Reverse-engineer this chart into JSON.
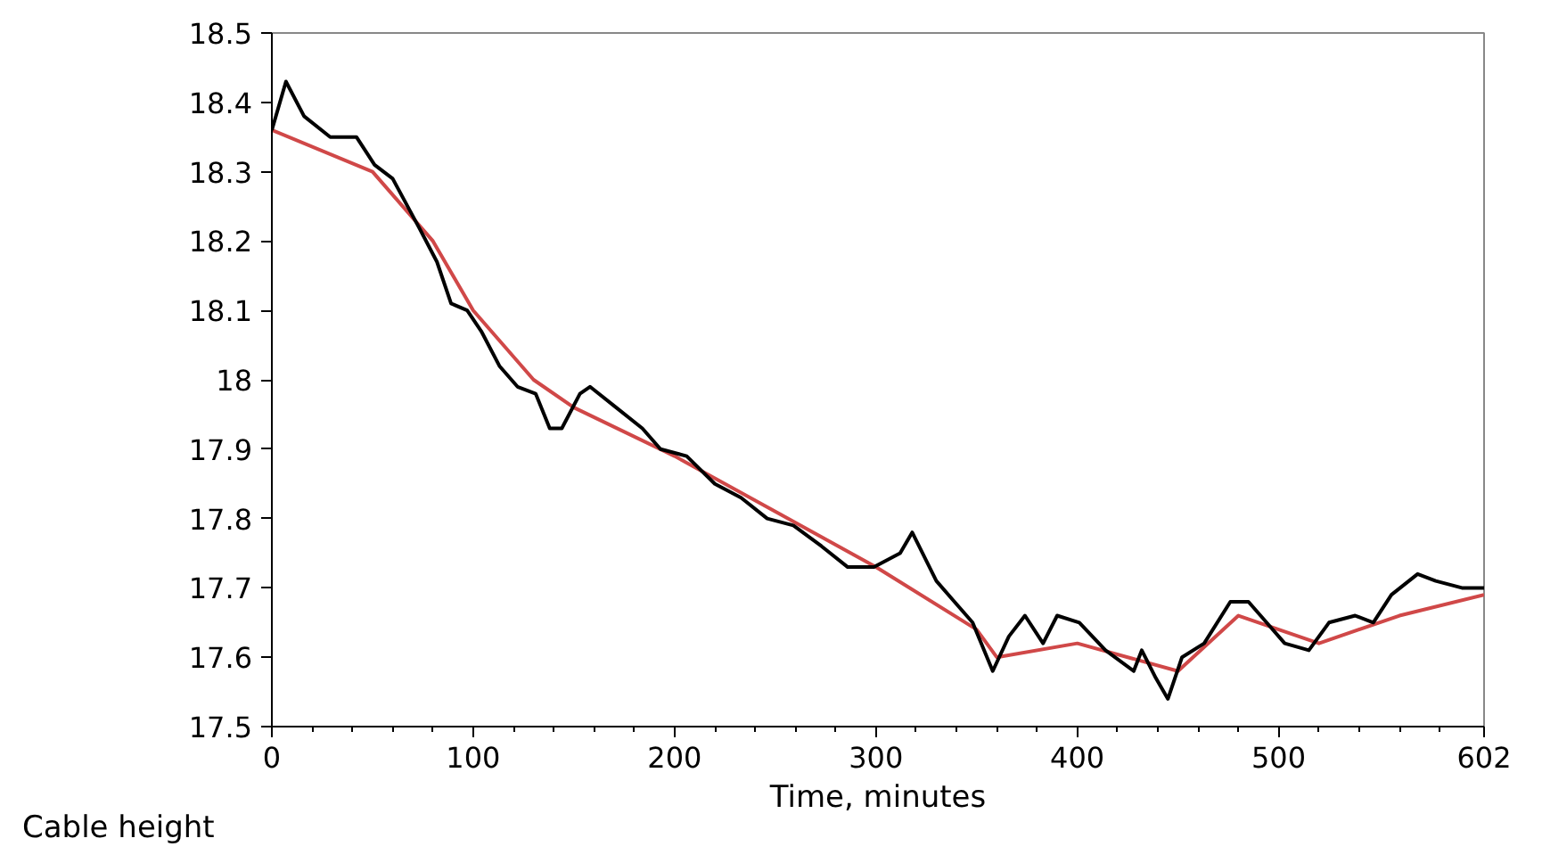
{
  "chart_data": {
    "type": "line",
    "xlabel": "Time, minutes",
    "annotations": [
      "Cable height"
    ],
    "xlim": [
      0,
      602
    ],
    "ylim": [
      17.5,
      18.5
    ],
    "xticks": [
      0,
      {
        "value": 20,
        "label": null
      },
      {
        "value": 40,
        "label": null
      },
      {
        "value": 60,
        "label": null
      },
      {
        "value": 80,
        "label": null
      },
      100,
      {
        "value": 120,
        "label": null
      },
      {
        "value": 140,
        "label": null
      },
      {
        "value": 160,
        "label": null
      },
      {
        "value": 180,
        "label": null
      },
      200,
      {
        "value": 220,
        "label": null
      },
      {
        "value": 240,
        "label": null
      },
      {
        "value": 260,
        "label": null
      },
      {
        "value": 280,
        "label": null
      },
      300,
      {
        "value": 320,
        "label": null
      },
      {
        "value": 340,
        "label": null
      },
      {
        "value": 360,
        "label": null
      },
      {
        "value": 380,
        "label": null
      },
      400,
      {
        "value": 420,
        "label": null
      },
      {
        "value": 440,
        "label": null
      },
      {
        "value": 460,
        "label": null
      },
      {
        "value": 480,
        "label": null
      },
      500,
      {
        "value": 520,
        "label": null
      },
      {
        "value": 540,
        "label": null
      },
      {
        "value": 560,
        "label": null
      },
      {
        "value": 580,
        "label": null
      },
      602
    ],
    "yticks": [
      17.5,
      17.6,
      17.7,
      17.8,
      17.9,
      18,
      18.1,
      18.2,
      18.3,
      18.4,
      18.5
    ],
    "grid": false,
    "marker": "none",
    "line_style": "solid",
    "series": [
      {
        "color": "#d04848",
        "x": [
          0,
          50,
          80,
          100,
          130,
          150,
          200,
          250,
          300,
          350,
          360,
          400,
          450,
          480,
          520,
          560,
          602
        ],
        "values": [
          18.36,
          18.3,
          18.2,
          18.1,
          18.0,
          17.96,
          17.89,
          17.81,
          17.73,
          17.64,
          17.6,
          17.62,
          17.58,
          17.66,
          17.62,
          17.66,
          17.69
        ]
      },
      {
        "color": "#000000",
        "x": [
          0,
          7,
          16,
          29,
          42,
          51,
          60,
          73,
          82,
          89,
          97,
          104,
          113,
          122,
          131,
          138,
          144,
          153,
          158,
          171,
          184,
          193,
          206,
          220,
          233,
          246,
          259,
          273,
          286,
          299,
          312,
          318,
          330,
          339,
          348,
          358,
          366,
          374,
          383,
          390,
          401,
          414,
          428,
          432,
          439,
          445,
          452,
          463,
          476,
          485,
          494,
          503,
          515,
          525,
          538,
          547,
          556,
          569,
          578,
          591,
          602
        ],
        "values": [
          18.36,
          18.43,
          18.38,
          18.35,
          18.35,
          18.31,
          18.29,
          18.22,
          18.17,
          18.11,
          18.1,
          18.07,
          18.02,
          17.99,
          17.98,
          17.93,
          17.93,
          17.98,
          17.99,
          17.96,
          17.93,
          17.9,
          17.89,
          17.85,
          17.83,
          17.8,
          17.79,
          17.76,
          17.73,
          17.73,
          17.75,
          17.78,
          17.71,
          17.68,
          17.65,
          17.58,
          17.63,
          17.66,
          17.62,
          17.66,
          17.65,
          17.61,
          17.58,
          17.61,
          17.57,
          17.54,
          17.6,
          17.62,
          17.68,
          17.68,
          17.65,
          17.62,
          17.61,
          17.65,
          17.66,
          17.65,
          17.69,
          17.72,
          17.71,
          17.7,
          17.7
        ]
      }
    ]
  }
}
